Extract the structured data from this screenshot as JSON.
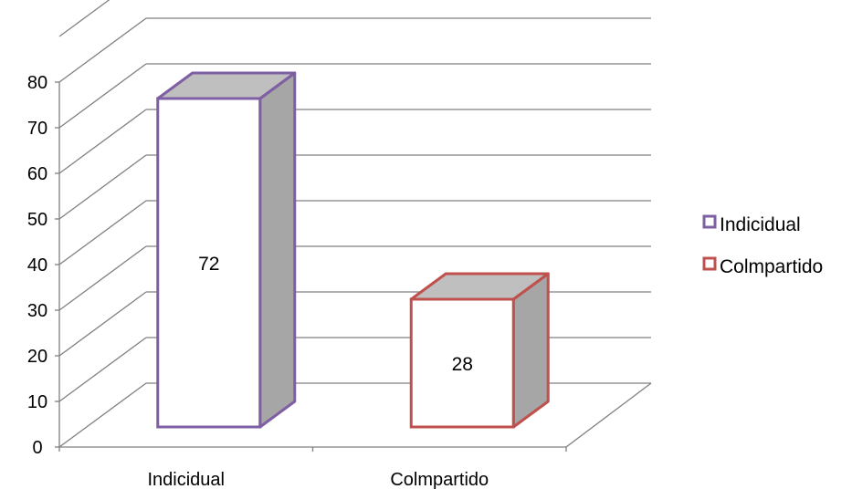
{
  "chart_data": {
    "type": "bar",
    "categories": [
      "Indicidual",
      "Colmpartido"
    ],
    "values": [
      72,
      28
    ],
    "series": [
      {
        "name": "Indicidual",
        "value": 72,
        "color": "#7F5FA3"
      },
      {
        "name": "Colmpartido",
        "value": 28,
        "color": "#C0504D"
      }
    ],
    "ylim": [
      0,
      80
    ],
    "yticks": [
      0,
      10,
      20,
      30,
      40,
      50,
      60,
      70,
      80
    ],
    "legend": "right",
    "grid": true,
    "style": "3d-column",
    "colors": {
      "grid": "#808080",
      "bar_front": "#ffffff",
      "bar_top": "#BFBFBF",
      "bar_side": "#A6A6A6"
    }
  }
}
